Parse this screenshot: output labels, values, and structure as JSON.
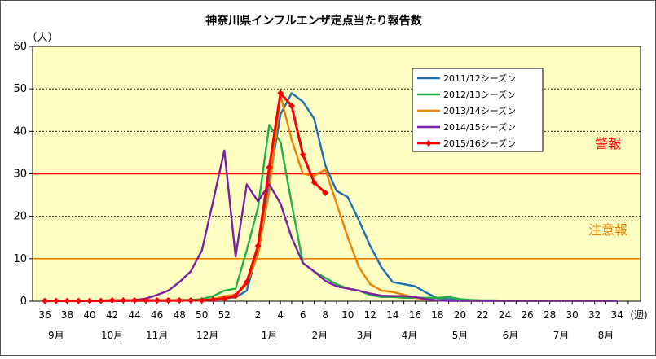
{
  "chart_data": {
    "type": "line",
    "title": "神奈川県インフルエンザ定点当たり報告数",
    "ylabel": "（人）",
    "xlabel_unit": "(週)",
    "ylim": [
      0,
      60
    ],
    "yticks": [
      0,
      10,
      20,
      30,
      40,
      50,
      60
    ],
    "x": [
      36,
      37,
      38,
      39,
      40,
      41,
      42,
      43,
      44,
      45,
      46,
      47,
      48,
      49,
      50,
      51,
      52,
      53,
      1,
      2,
      3,
      4,
      5,
      6,
      7,
      8,
      9,
      10,
      11,
      12,
      13,
      14,
      15,
      16,
      17,
      18,
      19,
      20,
      21,
      22,
      23,
      24,
      25,
      26,
      27,
      28,
      29,
      30,
      31,
      32,
      33,
      34,
      35
    ],
    "xtick_labels": [
      "36",
      "38",
      "40",
      "42",
      "44",
      "46",
      "48",
      "50",
      "52",
      "2",
      "4",
      "6",
      "8",
      "10",
      "12",
      "14",
      "16",
      "18",
      "20",
      "22",
      "24",
      "26",
      "28",
      "30",
      "32",
      "34"
    ],
    "months": [
      {
        "label": "9月",
        "week": 37
      },
      {
        "label": "10月",
        "week": 42
      },
      {
        "label": "11月",
        "week": 46
      },
      {
        "label": "12月",
        "week": 50.5
      },
      {
        "label": "1月",
        "week": 3
      },
      {
        "label": "2月",
        "week": 7.5
      },
      {
        "label": "3月",
        "week": 11.5
      },
      {
        "label": "4月",
        "week": 15.5
      },
      {
        "label": "5月",
        "week": 20
      },
      {
        "label": "6月",
        "week": 24.5
      },
      {
        "label": "7月",
        "week": 29
      },
      {
        "label": "8月",
        "week": 33
      }
    ],
    "thresholds": [
      {
        "label": "警報",
        "value": 30,
        "color": "#ff0000"
      },
      {
        "label": "注意報",
        "value": 10,
        "color": "#f08000"
      }
    ],
    "series": [
      {
        "name": "2011/12シーズン",
        "color": "#1f6fb5",
        "markers": false,
        "values": [
          0.1,
          0.1,
          0.1,
          0.1,
          0.1,
          0.1,
          0.1,
          0.1,
          0.1,
          0.1,
          0.1,
          0.1,
          0.2,
          0.2,
          0.3,
          0.5,
          0.7,
          0.9,
          2.5,
          12,
          28,
          44,
          49,
          47,
          43,
          32,
          26,
          24.5,
          19,
          13,
          8,
          4.5,
          4,
          3.5,
          2,
          0.7,
          0.5,
          0.3,
          0.2,
          0.1,
          0.1,
          0.1,
          0.1,
          0.1,
          0.1,
          0.1,
          0.1,
          0.1,
          0.1,
          0.1,
          0.1,
          0.1,
          null
        ]
      },
      {
        "name": "2012/13シーズン",
        "color": "#22b04a",
        "markers": false,
        "values": [
          0.1,
          0.1,
          0.1,
          0.1,
          0.1,
          0.1,
          0.1,
          0.1,
          0.1,
          0.2,
          0.2,
          0.2,
          0.3,
          0.3,
          0.5,
          1.2,
          2.5,
          3,
          12,
          22,
          41.5,
          37.5,
          23,
          9,
          7,
          5.5,
          4,
          3,
          2.5,
          1.5,
          1,
          1,
          0.8,
          0.8,
          0.8,
          0.8,
          1,
          0.5,
          0.3,
          0.2,
          0.2,
          0.1,
          0.1,
          0.1,
          0.1,
          0.1,
          0.1,
          0.1,
          0.1,
          0.1,
          0.1,
          0.1,
          null
        ]
      },
      {
        "name": "2013/14シーズン",
        "color": "#f08000",
        "markers": false,
        "values": [
          0.1,
          0.1,
          0.1,
          0.1,
          0.1,
          0.1,
          0.1,
          0.1,
          0.1,
          0.1,
          0.1,
          0.1,
          0.1,
          0.2,
          0.3,
          0.5,
          1.2,
          1.5,
          4,
          11,
          26,
          48.5,
          38,
          30,
          29.5,
          31,
          23,
          15,
          8,
          4,
          2.5,
          2.2,
          1.5,
          0.8,
          0.4,
          0.2,
          0.2,
          0.1,
          0.1,
          0.1,
          0.1,
          0.1,
          0.1,
          0.1,
          0.1,
          0.1,
          0.1,
          0.1,
          0.1,
          0.1,
          0.1,
          null,
          null
        ]
      },
      {
        "name": "2014/15シーズン",
        "color": "#7a1fa2",
        "markers": false,
        "values": [
          0.1,
          0.1,
          0.1,
          0.1,
          0.1,
          0.1,
          0.1,
          0.1,
          0.3,
          0.6,
          1.5,
          2.5,
          4.5,
          7,
          12,
          23.5,
          35.5,
          10.5,
          27.5,
          23.5,
          27.5,
          23,
          15,
          9,
          7,
          4.8,
          3.5,
          3,
          2.5,
          1.8,
          1.3,
          1.2,
          1.2,
          1,
          0.5,
          0.2,
          0.1,
          0.1,
          0.1,
          0.1,
          0.1,
          0.1,
          0.1,
          0.1,
          0.1,
          0.1,
          0.1,
          0.1,
          0.1,
          0.1,
          0.1,
          0.1,
          null
        ]
      },
      {
        "name": "2015/16シーズン",
        "color": "#ff0000",
        "markers": true,
        "values": [
          0.1,
          0.1,
          0.1,
          0.1,
          0.1,
          0.1,
          0.2,
          0.2,
          0.2,
          0.2,
          0.2,
          0.2,
          0.2,
          0.2,
          0.2,
          0.4,
          0.6,
          1.3,
          4.5,
          13,
          31.5,
          49,
          46,
          34.5,
          28,
          25.5,
          null,
          null,
          null,
          null,
          null,
          null,
          null,
          null,
          null,
          null,
          null,
          null,
          null,
          null,
          null,
          null,
          null,
          null,
          null,
          null,
          null,
          null,
          null,
          null,
          null,
          null,
          null
        ]
      }
    ],
    "legend_placement": "top-right",
    "grid": true,
    "background": "#ffffc4"
  }
}
